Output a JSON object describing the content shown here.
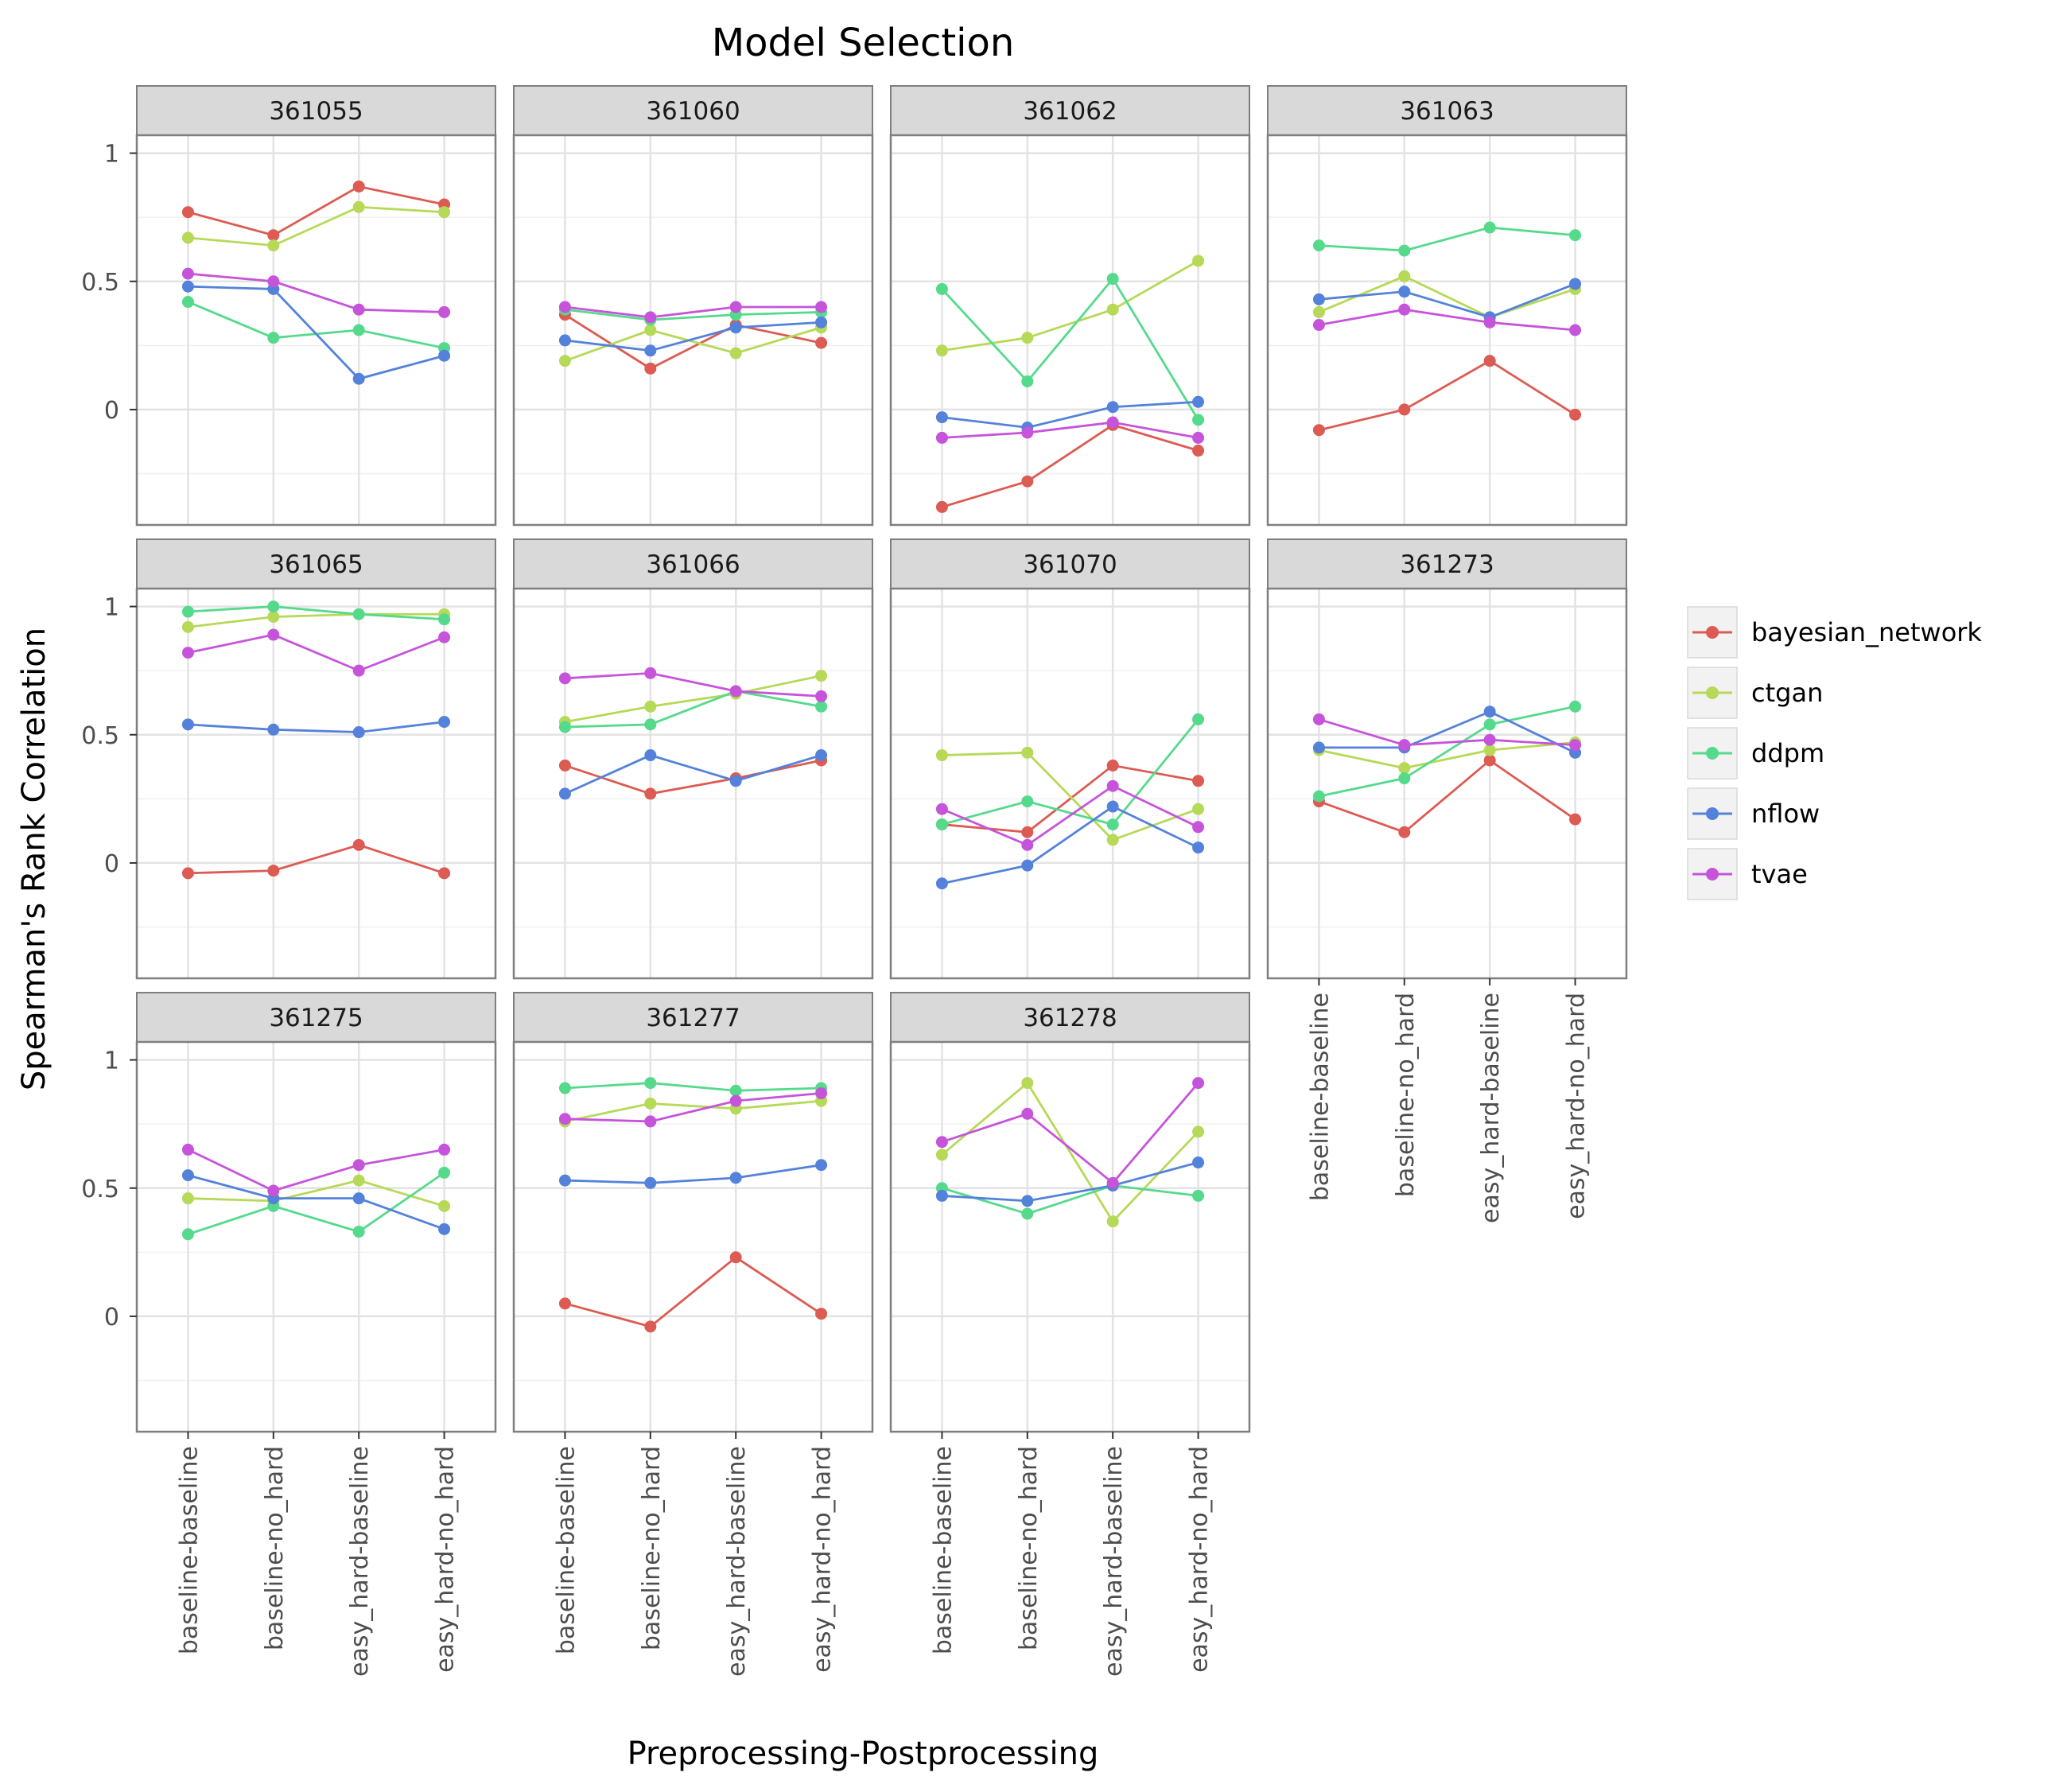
{
  "chart_data": {
    "type": "line",
    "title": "Model Selection",
    "xlabel": "Preprocessing-Postprocessing",
    "ylabel": "Spearman's Rank Correlation",
    "categories": [
      "baseline-baseline",
      "baseline-no_hard",
      "easy_hard-baseline",
      "easy_hard-no_hard"
    ],
    "yticks": [
      0,
      0.5,
      1
    ],
    "ytick_labels": [
      "0",
      "0.5",
      "1"
    ],
    "ylim": [
      -0.45,
      1.07
    ],
    "grid": true,
    "legend": "right",
    "series_names": [
      "bayesian_network",
      "ctgan",
      "ddpm",
      "nflow",
      "tvae"
    ],
    "series_colors": {
      "bayesian_network": "#dc5b52",
      "ctgan": "#b6d957",
      "ddpm": "#55da8c",
      "nflow": "#5482da",
      "tvae": "#c654da"
    },
    "facets": [
      {
        "id": "361055",
        "series": [
          {
            "name": "bayesian_network",
            "values": [
              0.77,
              0.68,
              0.87,
              0.8
            ]
          },
          {
            "name": "ctgan",
            "values": [
              0.67,
              0.64,
              0.79,
              0.77
            ]
          },
          {
            "name": "ddpm",
            "values": [
              0.42,
              0.28,
              0.31,
              0.24
            ]
          },
          {
            "name": "nflow",
            "values": [
              0.48,
              0.47,
              0.12,
              0.21
            ]
          },
          {
            "name": "tvae",
            "values": [
              0.53,
              0.5,
              0.39,
              0.38
            ]
          }
        ]
      },
      {
        "id": "361060",
        "series": [
          {
            "name": "bayesian_network",
            "values": [
              0.37,
              0.16,
              0.33,
              0.26
            ]
          },
          {
            "name": "ctgan",
            "values": [
              0.19,
              0.31,
              0.22,
              0.32
            ]
          },
          {
            "name": "ddpm",
            "values": [
              0.39,
              0.35,
              0.37,
              0.38
            ]
          },
          {
            "name": "nflow",
            "values": [
              0.27,
              0.23,
              0.32,
              0.34
            ]
          },
          {
            "name": "tvae",
            "values": [
              0.4,
              0.36,
              0.4,
              0.4
            ]
          }
        ]
      },
      {
        "id": "361062",
        "series": [
          {
            "name": "bayesian_network",
            "values": [
              -0.38,
              -0.28,
              -0.06,
              -0.16
            ]
          },
          {
            "name": "ctgan",
            "values": [
              0.23,
              0.28,
              0.39,
              0.58
            ]
          },
          {
            "name": "ddpm",
            "values": [
              0.47,
              0.11,
              0.51,
              -0.04
            ]
          },
          {
            "name": "nflow",
            "values": [
              -0.03,
              -0.07,
              0.01,
              0.03
            ]
          },
          {
            "name": "tvae",
            "values": [
              -0.11,
              -0.09,
              -0.05,
              -0.11
            ]
          }
        ]
      },
      {
        "id": "361063",
        "series": [
          {
            "name": "bayesian_network",
            "values": [
              -0.08,
              0.0,
              0.19,
              -0.02
            ]
          },
          {
            "name": "ctgan",
            "values": [
              0.38,
              0.52,
              0.36,
              0.47
            ]
          },
          {
            "name": "ddpm",
            "values": [
              0.64,
              0.62,
              0.71,
              0.68
            ]
          },
          {
            "name": "nflow",
            "values": [
              0.43,
              0.46,
              0.36,
              0.49
            ]
          },
          {
            "name": "tvae",
            "values": [
              0.33,
              0.39,
              0.34,
              0.31
            ]
          }
        ]
      },
      {
        "id": "361065",
        "series": [
          {
            "name": "bayesian_network",
            "values": [
              -0.04,
              -0.03,
              0.07,
              -0.04
            ]
          },
          {
            "name": "ctgan",
            "values": [
              0.92,
              0.96,
              0.97,
              0.97
            ]
          },
          {
            "name": "ddpm",
            "values": [
              0.98,
              1.0,
              0.97,
              0.95
            ]
          },
          {
            "name": "nflow",
            "values": [
              0.54,
              0.52,
              0.51,
              0.55
            ]
          },
          {
            "name": "tvae",
            "values": [
              0.82,
              0.89,
              0.75,
              0.88
            ]
          }
        ]
      },
      {
        "id": "361066",
        "series": [
          {
            "name": "bayesian_network",
            "values": [
              0.38,
              0.27,
              0.33,
              0.4
            ]
          },
          {
            "name": "ctgan",
            "values": [
              0.55,
              0.61,
              0.66,
              0.73
            ]
          },
          {
            "name": "ddpm",
            "values": [
              0.53,
              0.54,
              0.67,
              0.61
            ]
          },
          {
            "name": "nflow",
            "values": [
              0.27,
              0.42,
              0.32,
              0.42
            ]
          },
          {
            "name": "tvae",
            "values": [
              0.72,
              0.74,
              0.67,
              0.65
            ]
          }
        ]
      },
      {
        "id": "361070",
        "series": [
          {
            "name": "bayesian_network",
            "values": [
              0.15,
              0.12,
              0.38,
              0.32
            ]
          },
          {
            "name": "ctgan",
            "values": [
              0.42,
              0.43,
              0.09,
              0.21
            ]
          },
          {
            "name": "ddpm",
            "values": [
              0.15,
              0.24,
              0.15,
              0.56
            ]
          },
          {
            "name": "nflow",
            "values": [
              -0.08,
              -0.01,
              0.22,
              0.06
            ]
          },
          {
            "name": "tvae",
            "values": [
              0.21,
              0.07,
              0.3,
              0.14
            ]
          }
        ]
      },
      {
        "id": "361273",
        "series": [
          {
            "name": "bayesian_network",
            "values": [
              0.24,
              0.12,
              0.4,
              0.17
            ]
          },
          {
            "name": "ctgan",
            "values": [
              0.44,
              0.37,
              0.44,
              0.47
            ]
          },
          {
            "name": "ddpm",
            "values": [
              0.26,
              0.33,
              0.54,
              0.61
            ]
          },
          {
            "name": "nflow",
            "values": [
              0.45,
              0.45,
              0.59,
              0.43
            ]
          },
          {
            "name": "tvae",
            "values": [
              0.56,
              0.46,
              0.48,
              0.46
            ]
          }
        ]
      },
      {
        "id": "361275",
        "series": [
          {
            "name": "bayesian_network",
            "values": [
              null,
              null,
              null,
              null
            ]
          },
          {
            "name": "ctgan",
            "values": [
              0.46,
              0.45,
              0.53,
              0.43
            ]
          },
          {
            "name": "ddpm",
            "values": [
              0.32,
              0.43,
              0.33,
              0.56
            ]
          },
          {
            "name": "nflow",
            "values": [
              0.55,
              0.46,
              0.46,
              0.34
            ]
          },
          {
            "name": "tvae",
            "values": [
              0.65,
              0.49,
              0.59,
              0.65
            ]
          }
        ]
      },
      {
        "id": "361277",
        "series": [
          {
            "name": "bayesian_network",
            "values": [
              0.05,
              -0.04,
              0.23,
              0.01
            ]
          },
          {
            "name": "ctgan",
            "values": [
              0.76,
              0.83,
              0.81,
              0.84
            ]
          },
          {
            "name": "ddpm",
            "values": [
              0.89,
              0.91,
              0.88,
              0.89
            ]
          },
          {
            "name": "nflow",
            "values": [
              0.53,
              0.52,
              0.54,
              0.59
            ]
          },
          {
            "name": "tvae",
            "values": [
              0.77,
              0.76,
              0.84,
              0.87
            ]
          }
        ]
      },
      {
        "id": "361278",
        "series": [
          {
            "name": "bayesian_network",
            "values": [
              null,
              null,
              null,
              null
            ]
          },
          {
            "name": "ctgan",
            "values": [
              0.63,
              0.91,
              0.37,
              0.72
            ]
          },
          {
            "name": "ddpm",
            "values": [
              0.5,
              0.4,
              0.51,
              0.47
            ]
          },
          {
            "name": "nflow",
            "values": [
              0.47,
              0.45,
              0.51,
              0.6
            ]
          },
          {
            "name": "tvae",
            "values": [
              0.68,
              0.79,
              0.52,
              0.91
            ]
          }
        ]
      }
    ]
  }
}
